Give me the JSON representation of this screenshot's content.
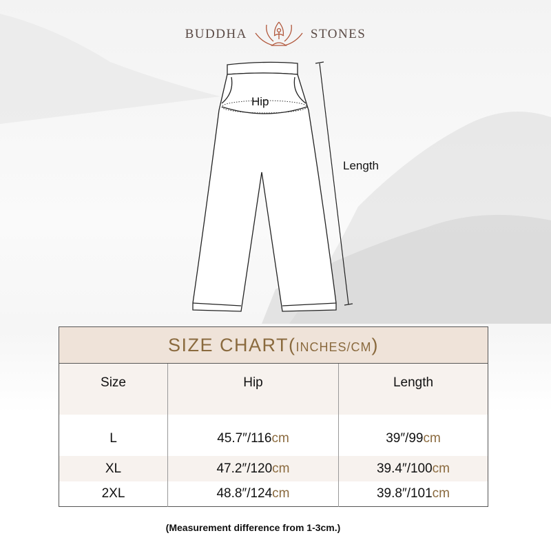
{
  "brand": {
    "left": "BUDDHA",
    "right": "STONES",
    "logo": "lotus-meditation-icon"
  },
  "diagram": {
    "hip_label": "Hip",
    "length_label": "Length"
  },
  "table": {
    "title": "SIZE CHART(",
    "title_small": "INCHES/CM",
    "title_end": ")",
    "columns": [
      "Size",
      "Hip",
      "Length"
    ],
    "rows": [
      {
        "size": "L",
        "hip": "45.7″/116",
        "hip_unit": "cm",
        "length": "39″/99",
        "length_unit": "cm"
      },
      {
        "size": "XL",
        "hip": "47.2″/120",
        "hip_unit": "cm",
        "length": "39.4″/100",
        "length_unit": "cm"
      },
      {
        "size": "2XL",
        "hip": "48.8″/124",
        "hip_unit": "cm",
        "length": "39.8″/101",
        "length_unit": "cm"
      }
    ]
  },
  "note": "(Measurement difference from 1-3cm.)",
  "colors": {
    "accent": "#8a6a3e",
    "header_bg": "#efe3d9",
    "logo": "#b0563a"
  }
}
